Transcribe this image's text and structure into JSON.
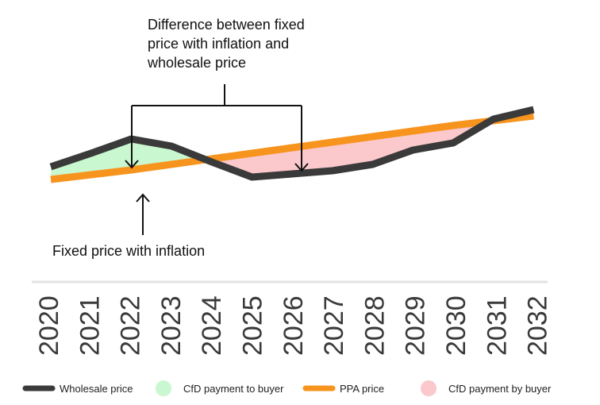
{
  "chart_data": {
    "type": "line",
    "title": "",
    "xlabel": "",
    "ylabel": "",
    "grid": false,
    "y_axis_labels": false,
    "legend_position": "bottom",
    "x": [
      "2020",
      "2021",
      "2022",
      "2023",
      "2024",
      "2025",
      "2026",
      "2027",
      "2028",
      "2029",
      "2030",
      "2031",
      "2032"
    ],
    "series": [
      {
        "name": "Wholesale price",
        "color": "#3a3a3a",
        "values": [
          0.28,
          0.45,
          0.63,
          0.54,
          0.34,
          0.15,
          0.19,
          0.23,
          0.31,
          0.49,
          0.58,
          0.88,
          1.0
        ]
      },
      {
        "name": "PPA price",
        "color": "#f7941d",
        "values": [
          0.12,
          0.18,
          0.24,
          0.31,
          0.38,
          0.45,
          0.52,
          0.59,
          0.66,
          0.73,
          0.8,
          0.86,
          0.92
        ]
      }
    ],
    "shaded_regions": [
      {
        "name": "CfD payment to buyer",
        "color": "#c9f7cf"
      },
      {
        "name": "CfD payment by buyer",
        "color": "#fbc8cc"
      }
    ],
    "annotations": [
      {
        "name": "difference-annotation",
        "lines": [
          "Difference between fixed",
          "price with inflation and",
          "wholesale price"
        ]
      },
      {
        "name": "fixed-price-annotation",
        "lines": [
          "Fixed price with inflation"
        ]
      }
    ]
  },
  "legend": [
    {
      "label": "Wholesale price",
      "kind": "line",
      "color": "#3a3a3a"
    },
    {
      "label": "CfD payment to buyer",
      "kind": "dot",
      "color": "#c9f7cf"
    },
    {
      "label": "PPA price",
      "kind": "line",
      "color": "#f7941d"
    },
    {
      "label": "CfD payment by buyer",
      "kind": "dot",
      "color": "#fbc8cc"
    }
  ]
}
